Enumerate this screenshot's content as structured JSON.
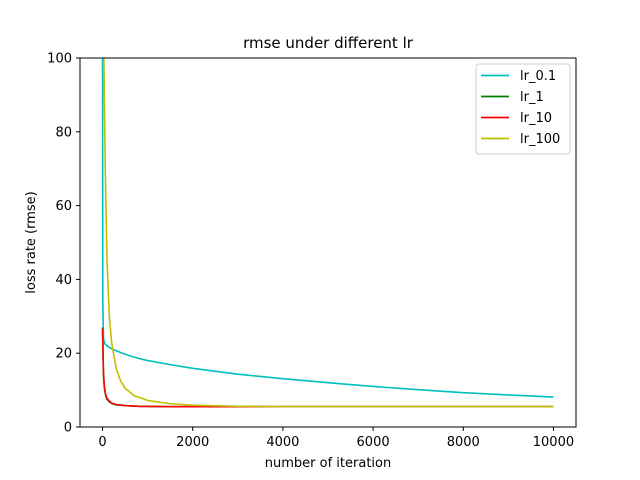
{
  "chart_data": {
    "type": "line",
    "title": "rmse under different lr",
    "xlabel": "number of iteration",
    "ylabel": "loss rate (rmse)",
    "xlim": [
      -500,
      10500
    ],
    "ylim": [
      0,
      100
    ],
    "xticks": [
      0,
      2000,
      4000,
      6000,
      8000,
      10000
    ],
    "yticks": [
      0,
      20,
      40,
      60,
      80,
      100
    ],
    "grid": false,
    "legend_position": "top-right",
    "series": [
      {
        "name": "lr_0.1",
        "color": "#00bfbf",
        "points": [
          [
            0,
            100
          ],
          [
            5,
            35
          ],
          [
            20,
            24
          ],
          [
            50,
            22.6
          ],
          [
            100,
            22
          ],
          [
            200,
            21.2
          ],
          [
            400,
            20.2
          ],
          [
            600,
            19.3
          ],
          [
            800,
            18.6
          ],
          [
            1000,
            18
          ],
          [
            1500,
            16.9
          ],
          [
            2000,
            15.9
          ],
          [
            2500,
            15.1
          ],
          [
            3000,
            14.3
          ],
          [
            3500,
            13.7
          ],
          [
            4000,
            13.1
          ],
          [
            5000,
            12
          ],
          [
            6000,
            11
          ],
          [
            7000,
            10.1
          ],
          [
            8000,
            9.3
          ],
          [
            9000,
            8.7
          ],
          [
            10000,
            8.1
          ]
        ]
      },
      {
        "name": "lr_1",
        "color": "#008000",
        "points": [
          [
            0,
            27
          ],
          [
            20,
            14
          ],
          [
            40,
            10.5
          ],
          [
            70,
            8.5
          ],
          [
            100,
            7.5
          ],
          [
            150,
            6.8
          ],
          [
            200,
            6.4
          ],
          [
            300,
            6
          ],
          [
            500,
            5.8
          ],
          [
            800,
            5.6
          ],
          [
            1500,
            5.5
          ],
          [
            10000,
            5.5
          ]
        ]
      },
      {
        "name": "lr_10",
        "color": "#ff0000",
        "points": [
          [
            0,
            26.5
          ],
          [
            20,
            15
          ],
          [
            40,
            11
          ],
          [
            70,
            8.8
          ],
          [
            100,
            7.8
          ],
          [
            150,
            7
          ],
          [
            200,
            6.5
          ],
          [
            300,
            6.1
          ],
          [
            500,
            5.8
          ],
          [
            800,
            5.6
          ],
          [
            1500,
            5.5
          ],
          [
            10000,
            5.5
          ]
        ]
      },
      {
        "name": "lr_100",
        "color": "#bfbf00",
        "points": [
          [
            0,
            100
          ],
          [
            30,
            100
          ],
          [
            60,
            70
          ],
          [
            100,
            45
          ],
          [
            150,
            30
          ],
          [
            200,
            23
          ],
          [
            300,
            16
          ],
          [
            400,
            12.5
          ],
          [
            500,
            10.5
          ],
          [
            700,
            8.5
          ],
          [
            1000,
            7.2
          ],
          [
            1500,
            6.3
          ],
          [
            2000,
            5.9
          ],
          [
            3000,
            5.6
          ],
          [
            4000,
            5.5
          ],
          [
            10000,
            5.5
          ]
        ]
      }
    ]
  }
}
